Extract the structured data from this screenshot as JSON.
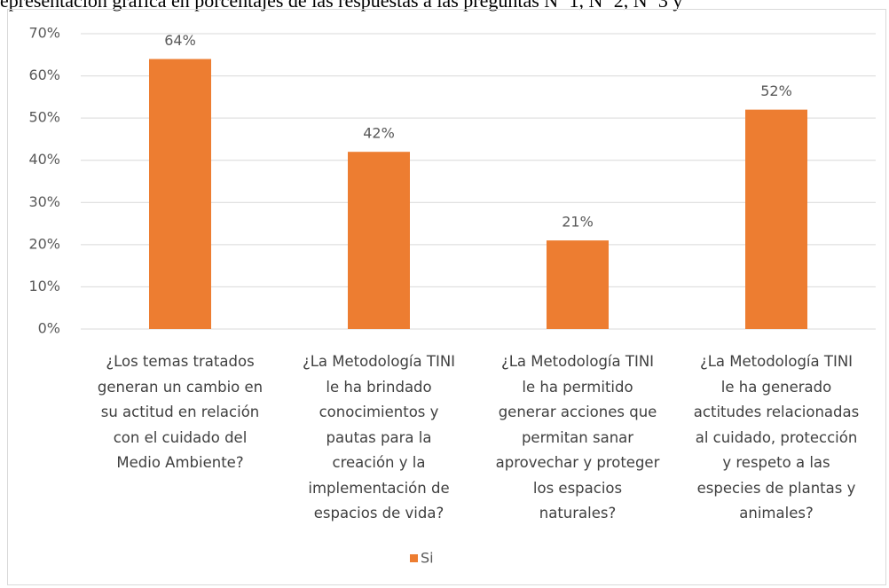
{
  "caption": "epresentación gráfica en porcentajes de las respuestas a las preguntas Nº 1, Nº 2, Nº 3 y",
  "chart_data": {
    "type": "bar",
    "categories": [
      "¿Los temas tratados\ngeneran un cambio en\nsu actitud en relación\ncon el cuidado del\nMedio Ambiente?",
      "¿La Metodología TINI\nle ha brindado\nconocimientos y\npautas para la\ncreación y la\nimplementación de\nespacios de vida?",
      "¿La Metodología TINI\nle ha permitido\ngenerar acciones que\npermitan sanar\naprovechar y proteger\nlos espacios\nnaturales?",
      "¿La Metodología TINI\nle ha generado\nactitudes relacionadas\nal cuidado, protección\ny respeto a las\nespecies de plantas y\nanimales?"
    ],
    "series": [
      {
        "name": "Si",
        "color": "#ed7d31",
        "values": [
          64,
          42,
          21,
          52
        ],
        "value_labels": [
          "64%",
          "42%",
          "21%",
          "52%"
        ]
      }
    ],
    "ylim": [
      0,
      70
    ],
    "yticks": [
      {
        "value": 0,
        "label": "0%"
      },
      {
        "value": 10,
        "label": "10%"
      },
      {
        "value": 20,
        "label": "20%"
      },
      {
        "value": 30,
        "label": "30%"
      },
      {
        "value": 40,
        "label": "40%"
      },
      {
        "value": 50,
        "label": "50%"
      },
      {
        "value": 60,
        "label": "60%"
      },
      {
        "value": 70,
        "label": "70%"
      }
    ],
    "grid": true,
    "legend": "bottom"
  }
}
